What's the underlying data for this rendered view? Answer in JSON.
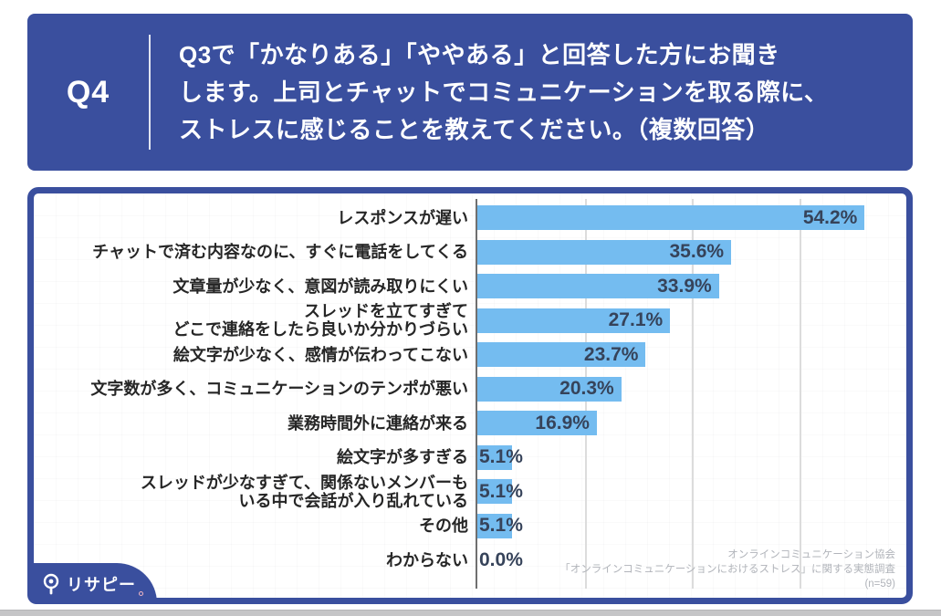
{
  "colors": {
    "navy": "#3a4f9e",
    "bar": "#74bcf0",
    "value_label": "#36435a",
    "category_label": "#262626",
    "gridline": "#dcdcdc",
    "source_note": "#b1b4ba"
  },
  "header": {
    "q_label": "Q4",
    "question_text": "Q3で「かなりある」「ややある」と回答した方にお聞き\nします。上司とチャットでコミュニケーションを取る際に、\nストレスに感じることを教えてください。（複数回答）"
  },
  "chart_data": {
    "type": "bar",
    "orientation": "horizontal",
    "title": "",
    "xlabel": "",
    "ylabel": "",
    "unit": "%",
    "xlim": [
      0,
      60
    ],
    "gridlines_at": [
      15,
      30,
      45
    ],
    "grid": true,
    "legend": false,
    "categories": [
      "レスポンスが遅い",
      "チャットで済む内容なのに、すぐに電話をしてくる",
      "文章量が少なく、意図が読み取りにくい",
      "スレッドを立てすぎて\nどこで連絡をしたら良いか分かりづらい",
      "絵文字が少なく、感情が伝わってこない",
      "文字数が多く、コミュニケーションのテンポが悪い",
      "業務時間外に連絡が来る",
      "絵文字が多すぎる",
      "スレッドが少なすぎて、関係ないメンバーも\nいる中で会話が入り乱れている",
      "その他",
      "わからない"
    ],
    "values": [
      54.2,
      35.6,
      33.9,
      27.1,
      23.7,
      20.3,
      16.9,
      5.1,
      5.1,
      5.1,
      0.0
    ],
    "value_labels": [
      "54.2%",
      "35.6%",
      "33.9%",
      "27.1%",
      "23.7%",
      "20.3%",
      "16.9%",
      "5.1%",
      "5.1%",
      "5.1%",
      "0.0%"
    ]
  },
  "source_note": {
    "text": "オンラインコミュニケーション協会\n「オンラインコミュニケーションにおけるストレス」に関する実態調査\n(n=59)"
  },
  "logo": {
    "text": "リサピー"
  }
}
